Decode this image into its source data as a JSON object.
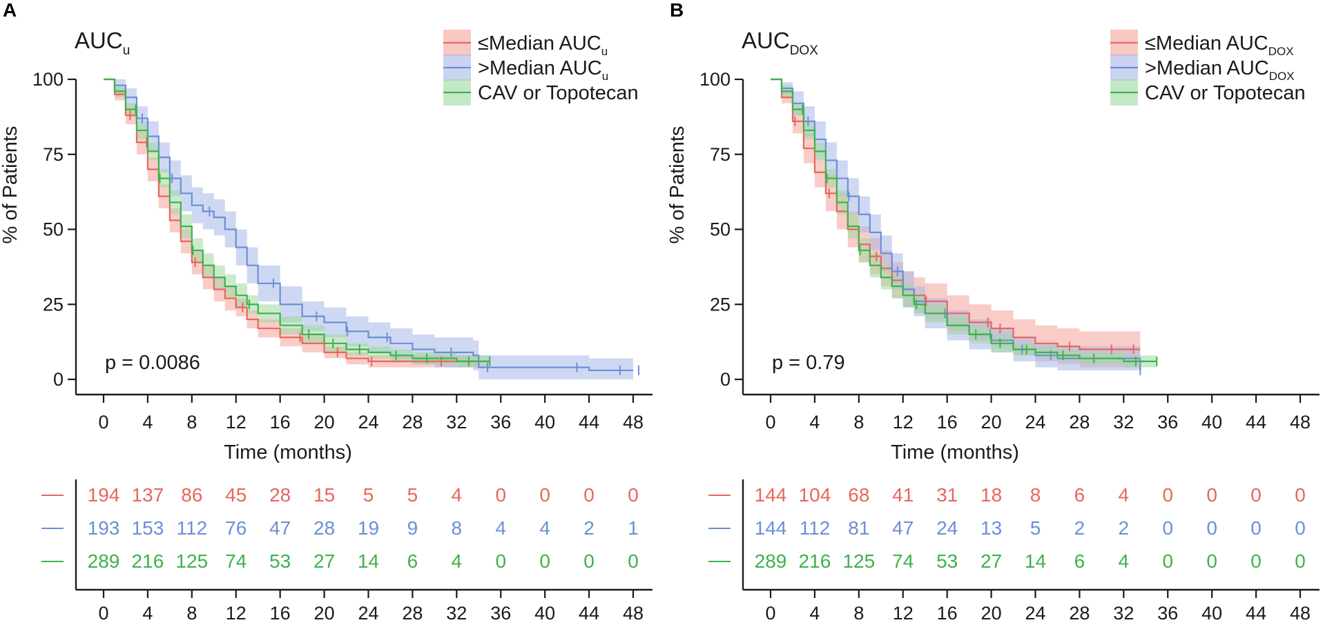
{
  "colors": {
    "red": "#e8665c",
    "blue": "#6b8fd6",
    "green": "#3db24a",
    "red_band": "#f4a39b",
    "blue_band": "#a7b8e8",
    "green_band": "#9fd9a0",
    "axis": "#1a1a1a"
  },
  "chart_data": [
    {
      "panel_label": "A",
      "type": "line",
      "subtype": "kaplan-meier",
      "title": "AUC",
      "title_subscript": "u",
      "xlabel": "Time (months)",
      "ylabel": "% of Patients",
      "xlim": [
        0,
        48
      ],
      "ylim": [
        0,
        100
      ],
      "xticks": [
        0,
        4,
        8,
        12,
        16,
        20,
        24,
        28,
        32,
        36,
        40,
        44,
        48
      ],
      "yticks": [
        0,
        25,
        50,
        75,
        100
      ],
      "annotation": "p = 0.0086",
      "legend_position": "top-right",
      "series": [
        {
          "name": "≤Median AUC",
          "name_sub": "u",
          "color_key": "red",
          "x": [
            0,
            1,
            2,
            3,
            4,
            5,
            6,
            7,
            8,
            9,
            10,
            11,
            12,
            13,
            14,
            16,
            18,
            20,
            22,
            24,
            26,
            28,
            30,
            32,
            34
          ],
          "y": [
            100,
            95,
            88,
            79,
            70,
            61,
            53,
            46,
            39,
            34,
            30,
            27,
            24,
            20,
            17,
            14,
            12,
            9,
            7,
            6,
            6,
            6,
            6,
            6,
            6
          ],
          "band_halfwidth": [
            0,
            2,
            3,
            4,
            4,
            4,
            4,
            4,
            4,
            4,
            4,
            4,
            3,
            3,
            3,
            3,
            3,
            2,
            2,
            2,
            2,
            2,
            2,
            2,
            2
          ],
          "censor_x": [
            2.4,
            3.9,
            8.3,
            12.6,
            17.8,
            21.2,
            24.3,
            30.6
          ]
        },
        {
          "name": ">Median AUC",
          "name_sub": "u",
          "color_key": "blue",
          "x": [
            0,
            1,
            2,
            3,
            4,
            5,
            6,
            7,
            8,
            9,
            10,
            11,
            12,
            13,
            14,
            16,
            18,
            20,
            22,
            24,
            26,
            28,
            30,
            32,
            33.5,
            34,
            36,
            40,
            44,
            48
          ],
          "y": [
            100,
            98,
            94,
            87,
            81,
            74,
            67,
            62,
            58,
            56,
            54,
            50,
            44,
            38,
            32,
            25,
            21,
            19,
            16,
            14,
            12,
            10,
            9,
            9,
            8,
            4,
            4,
            4,
            3,
            3
          ],
          "band_halfwidth": [
            0,
            2,
            3,
            4,
            5,
            5,
            6,
            6,
            6,
            6,
            6,
            6,
            6,
            6,
            6,
            6,
            5,
            5,
            5,
            5,
            5,
            5,
            5,
            5,
            5,
            4,
            4,
            4,
            4,
            4
          ],
          "censor_x": [
            3.5,
            6.2,
            9.6,
            15.4,
            19.3,
            22.1,
            25.7,
            31.5,
            34.8,
            42.9,
            46.8,
            48.5
          ]
        },
        {
          "name": "CAV or Topotecan",
          "name_sub": "",
          "color_key": "green",
          "x": [
            0,
            1,
            2,
            3,
            4,
            5,
            6,
            7,
            8,
            9,
            10,
            11,
            12,
            13,
            14,
            16,
            18,
            20,
            22,
            24,
            26,
            28,
            30,
            32,
            34,
            35
          ],
          "y": [
            100,
            96,
            90,
            83,
            76,
            67,
            59,
            51,
            43,
            38,
            34,
            31,
            28,
            25,
            22,
            18,
            15,
            12,
            10,
            9,
            8,
            7,
            7,
            6,
            6,
            6
          ],
          "band_halfwidth": [
            0,
            2,
            2,
            3,
            3,
            3,
            4,
            4,
            4,
            4,
            4,
            4,
            4,
            3,
            3,
            3,
            3,
            3,
            2,
            2,
            2,
            2,
            2,
            2,
            2,
            2
          ],
          "censor_x": [
            2.9,
            5.1,
            8.1,
            13.2,
            18.6,
            20.8,
            23.2,
            26.5,
            29.3,
            33.1,
            35.0
          ]
        }
      ],
      "risk_table": {
        "times": [
          0,
          4,
          8,
          12,
          16,
          20,
          24,
          28,
          32,
          36,
          40,
          44,
          48
        ],
        "rows": [
          {
            "color_key": "red",
            "values": [
              "194",
              "137",
              "86",
              "45",
              "28",
              "15",
              "5",
              "5",
              "4",
              "0",
              "0",
              "0",
              "0"
            ]
          },
          {
            "color_key": "blue",
            "values": [
              "193",
              "153",
              "112",
              "76",
              "47",
              "28",
              "19",
              "9",
              "8",
              "4",
              "4",
              "2",
              "1"
            ]
          },
          {
            "color_key": "green",
            "values": [
              "289",
              "216",
              "125",
              "74",
              "53",
              "27",
              "14",
              "6",
              "4",
              "0",
              "0",
              "0",
              "0"
            ]
          }
        ]
      }
    },
    {
      "panel_label": "B",
      "type": "line",
      "subtype": "kaplan-meier",
      "title": "AUC",
      "title_subscript": "DOX",
      "xlabel": "Time (months)",
      "ylabel": "% of Patients",
      "xlim": [
        0,
        48
      ],
      "ylim": [
        0,
        100
      ],
      "xticks": [
        0,
        4,
        8,
        12,
        16,
        20,
        24,
        28,
        32,
        36,
        40,
        44,
        48
      ],
      "yticks": [
        0,
        25,
        50,
        75,
        100
      ],
      "annotation": "p = 0.79",
      "legend_position": "top-right",
      "series": [
        {
          "name": "≤Median AUC",
          "name_sub": "DOX",
          "color_key": "red",
          "x": [
            0,
            1,
            2,
            3,
            4,
            5,
            6,
            7,
            8,
            9,
            10,
            11,
            12,
            13,
            14,
            16,
            18,
            20,
            22,
            24,
            26,
            28,
            30,
            32,
            33.5
          ],
          "y": [
            100,
            94,
            86,
            77,
            69,
            62,
            56,
            50,
            45,
            41,
            37,
            33,
            30,
            28,
            26,
            22,
            19,
            17,
            14,
            12,
            11,
            10,
            10,
            10,
            10
          ],
          "band_halfwidth": [
            0,
            2,
            4,
            5,
            5,
            6,
            6,
            6,
            6,
            6,
            6,
            6,
            6,
            6,
            6,
            6,
            6,
            6,
            6,
            6,
            6,
            6,
            6,
            6,
            6
          ],
          "censor_x": [
            2.2,
            5.3,
            9.6,
            14.1,
            19.7,
            20.8,
            27.1,
            30.9,
            32.9
          ]
        },
        {
          "name": ">Median AUC",
          "name_sub": "DOX",
          "color_key": "blue",
          "x": [
            0,
            1,
            2,
            3,
            4,
            5,
            6,
            7,
            8,
            9,
            10,
            11,
            12,
            13,
            14,
            16,
            18,
            20,
            22,
            24,
            26,
            28,
            30,
            32,
            33.5
          ],
          "y": [
            100,
            97,
            92,
            86,
            80,
            73,
            67,
            61,
            55,
            49,
            42,
            36,
            30,
            26,
            22,
            18,
            15,
            13,
            10,
            8,
            7,
            7,
            7,
            7,
            3
          ],
          "band_halfwidth": [
            0,
            2,
            4,
            5,
            6,
            6,
            6,
            6,
            6,
            6,
            6,
            6,
            6,
            5,
            5,
            5,
            5,
            4,
            4,
            4,
            4,
            4,
            4,
            4,
            4
          ],
          "censor_x": [
            3.4,
            7.1,
            11.5,
            15.8,
            19.9,
            22.8,
            25.4,
            33.5
          ]
        },
        {
          "name": "CAV or Topotecan",
          "name_sub": "",
          "color_key": "green",
          "x": [
            0,
            1,
            2,
            3,
            4,
            5,
            6,
            7,
            8,
            9,
            10,
            11,
            12,
            13,
            14,
            16,
            18,
            20,
            22,
            24,
            26,
            28,
            30,
            32,
            34,
            35
          ],
          "y": [
            100,
            96,
            90,
            83,
            76,
            67,
            59,
            51,
            43,
            38,
            34,
            31,
            28,
            25,
            22,
            18,
            15,
            12,
            10,
            9,
            8,
            7,
            7,
            6,
            6,
            6
          ],
          "band_halfwidth": [
            0,
            2,
            2,
            3,
            3,
            3,
            4,
            4,
            4,
            4,
            4,
            4,
            4,
            3,
            3,
            3,
            3,
            3,
            2,
            2,
            2,
            2,
            2,
            2,
            2,
            2
          ],
          "censor_x": [
            2.9,
            5.1,
            8.1,
            13.2,
            18.6,
            20.8,
            23.2,
            26.5,
            29.3,
            33.1,
            35.0
          ]
        }
      ],
      "risk_table": {
        "times": [
          0,
          4,
          8,
          12,
          16,
          20,
          24,
          28,
          32,
          36,
          40,
          44,
          48
        ],
        "rows": [
          {
            "color_key": "red",
            "values": [
              "144",
              "104",
              "68",
              "41",
              "31",
              "18",
              "8",
              "6",
              "4",
              "0",
              "0",
              "0",
              "0"
            ]
          },
          {
            "color_key": "blue",
            "values": [
              "144",
              "112",
              "81",
              "47",
              "24",
              "13",
              "5",
              "2",
              "2",
              "0",
              "0",
              "0",
              "0"
            ]
          },
          {
            "color_key": "green",
            "values": [
              "289",
              "216",
              "125",
              "74",
              "53",
              "27",
              "14",
              "6",
              "4",
              "0",
              "0",
              "0",
              "0"
            ]
          }
        ]
      }
    }
  ]
}
